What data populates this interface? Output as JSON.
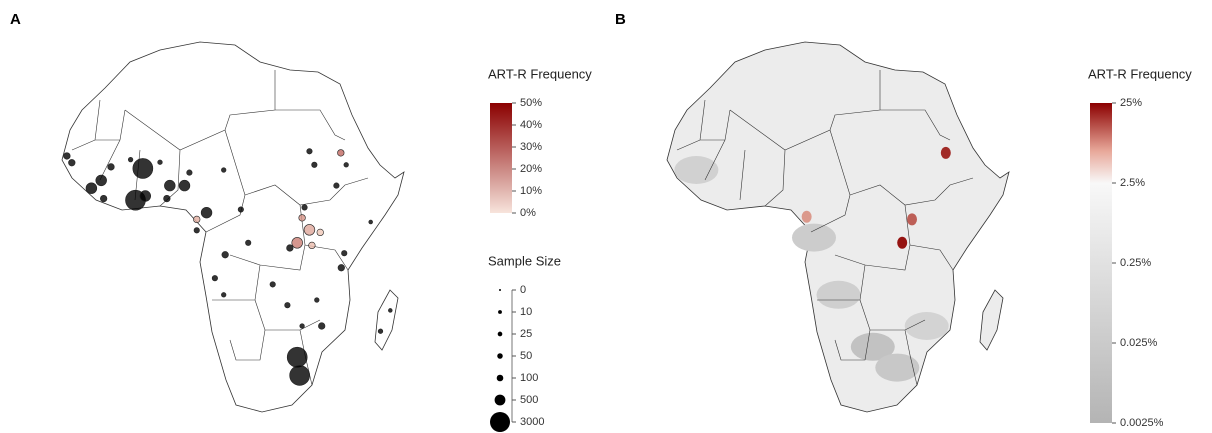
{
  "panels": [
    {
      "label": "A",
      "legend_color": {
        "title": "ART-R Frequency",
        "lim": [
          0,
          50
        ],
        "ticks": [
          {
            "value": 0,
            "label": "0%"
          },
          {
            "value": 10,
            "label": "10%"
          },
          {
            "value": 20,
            "label": "20%"
          },
          {
            "value": 30,
            "label": "30%"
          },
          {
            "value": 40,
            "label": "40%"
          },
          {
            "value": 50,
            "label": "50%"
          }
        ]
      },
      "legend_size": {
        "title": "Sample Size",
        "ticks": [
          0,
          10,
          25,
          50,
          100,
          500,
          3000
        ]
      },
      "sites": [
        {
          "lon": -17,
          "lat": 14.7,
          "n": 100,
          "freq": 0
        },
        {
          "lon": -16,
          "lat": 13.4,
          "n": 100,
          "freq": 0
        },
        {
          "lon": -10,
          "lat": 10,
          "n": 500,
          "freq": 0
        },
        {
          "lon": -12,
          "lat": 8.5,
          "n": 500,
          "freq": 0
        },
        {
          "lon": -9.5,
          "lat": 6.5,
          "n": 100,
          "freq": 0
        },
        {
          "lon": -8,
          "lat": 12.6,
          "n": 100,
          "freq": 0
        },
        {
          "lon": -1.5,
          "lat": 12.3,
          "n": 3000,
          "freq": 0
        },
        {
          "lon": -1,
          "lat": 7,
          "n": 500,
          "freq": 0
        },
        {
          "lon": -3,
          "lat": 6.2,
          "n": 3000,
          "freq": 0
        },
        {
          "lon": 7,
          "lat": 9,
          "n": 500,
          "freq": 0
        },
        {
          "lon": 3.4,
          "lat": 6.5,
          "n": 100,
          "freq": 0
        },
        {
          "lon": 8,
          "lat": 11.5,
          "n": 50,
          "freq": 0
        },
        {
          "lon": 11.5,
          "lat": 3.8,
          "n": 500,
          "freq": 0
        },
        {
          "lon": 9.5,
          "lat": 2.5,
          "n": 100,
          "freq": 8
        },
        {
          "lon": 9.5,
          "lat": 0.4,
          "n": 50,
          "freq": 0
        },
        {
          "lon": 15.3,
          "lat": -4.3,
          "n": 100,
          "freq": 0
        },
        {
          "lon": 20,
          "lat": -2,
          "n": 50,
          "freq": 0
        },
        {
          "lon": 25,
          "lat": -10,
          "n": 50,
          "freq": 0
        },
        {
          "lon": 28.5,
          "lat": -3,
          "n": 100,
          "freq": 0
        },
        {
          "lon": 13.2,
          "lat": -8.8,
          "n": 50,
          "freq": 0
        },
        {
          "lon": 15,
          "lat": -12,
          "n": 25,
          "freq": 0
        },
        {
          "lon": 30,
          "lat": -2,
          "n": 500,
          "freq": 20
        },
        {
          "lon": 32.5,
          "lat": 0.5,
          "n": 500,
          "freq": 10
        },
        {
          "lon": 31,
          "lat": 2.8,
          "n": 100,
          "freq": 15
        },
        {
          "lon": 33,
          "lat": -2.5,
          "n": 100,
          "freq": 5
        },
        {
          "lon": 39,
          "lat": -6.8,
          "n": 100,
          "freq": 0
        },
        {
          "lon": 34.7,
          "lat": 0,
          "n": 100,
          "freq": 2
        },
        {
          "lon": 39.6,
          "lat": -4,
          "n": 50,
          "freq": 0
        },
        {
          "lon": 38,
          "lat": 9,
          "n": 50,
          "freq": 0
        },
        {
          "lon": 38.9,
          "lat": 15.3,
          "n": 100,
          "freq": 25
        },
        {
          "lon": 32.5,
          "lat": 15.6,
          "n": 50,
          "freq": 0
        },
        {
          "lon": 33.5,
          "lat": 13,
          "n": 50,
          "freq": 0
        },
        {
          "lon": 15,
          "lat": 12,
          "n": 25,
          "freq": 0
        },
        {
          "lon": 35,
          "lat": -18,
          "n": 100,
          "freq": 0
        },
        {
          "lon": 30,
          "lat": -24,
          "n": 3000,
          "freq": 0
        },
        {
          "lon": 30.5,
          "lat": -27.5,
          "n": 3000,
          "freq": 0
        },
        {
          "lon": 28,
          "lat": -14,
          "n": 50,
          "freq": 0
        },
        {
          "lon": 34,
          "lat": -13,
          "n": 25,
          "freq": 0
        },
        {
          "lon": 31,
          "lat": -18,
          "n": 25,
          "freq": 0
        },
        {
          "lon": 47,
          "lat": -19,
          "n": 25,
          "freq": 0
        },
        {
          "lon": 49,
          "lat": -15,
          "n": 10,
          "freq": 0
        },
        {
          "lon": 45,
          "lat": 2,
          "n": 10,
          "freq": 0
        },
        {
          "lon": 40,
          "lat": 13,
          "n": 25,
          "freq": 0
        },
        {
          "lon": -4,
          "lat": 14,
          "n": 25,
          "freq": 0
        },
        {
          "lon": 2,
          "lat": 13.5,
          "n": 25,
          "freq": 0
        },
        {
          "lon": 18.5,
          "lat": 4.4,
          "n": 50,
          "freq": 0
        },
        {
          "lon": 31.5,
          "lat": 4.8,
          "n": 50,
          "freq": 0
        },
        {
          "lon": 4,
          "lat": 9,
          "n": 500,
          "freq": 0
        }
      ]
    },
    {
      "label": "B",
      "legend_color": {
        "title": "ART-R Frequency",
        "scale": "log",
        "lim": [
          0.0025,
          25
        ],
        "ticks": [
          {
            "value": 0.0025,
            "label": "0.0025%"
          },
          {
            "value": 0.025,
            "label": "0.025%"
          },
          {
            "value": 0.25,
            "label": "0.25%"
          },
          {
            "value": 2.5,
            "label": "2.5%"
          },
          {
            "value": 25,
            "label": "25%"
          }
        ]
      },
      "regions": [
        {
          "lon": 38.9,
          "lat": 15.3,
          "value": 15
        },
        {
          "lon": 30,
          "lat": -2,
          "value": 20
        },
        {
          "lon": 32,
          "lat": 2.5,
          "value": 8
        },
        {
          "lon": 10.5,
          "lat": 3,
          "value": 4
        },
        {
          "lon": 24,
          "lat": -22,
          "value": 0.01
        },
        {
          "lon": 17,
          "lat": -12,
          "value": 0.04
        },
        {
          "lon": 29,
          "lat": -26,
          "value": 0.02
        },
        {
          "lon": -12,
          "lat": 12,
          "value": 0.05
        },
        {
          "lon": 12,
          "lat": -1,
          "value": 0.03
        },
        {
          "lon": 35,
          "lat": -18,
          "value": 0.06
        }
      ]
    }
  ]
}
